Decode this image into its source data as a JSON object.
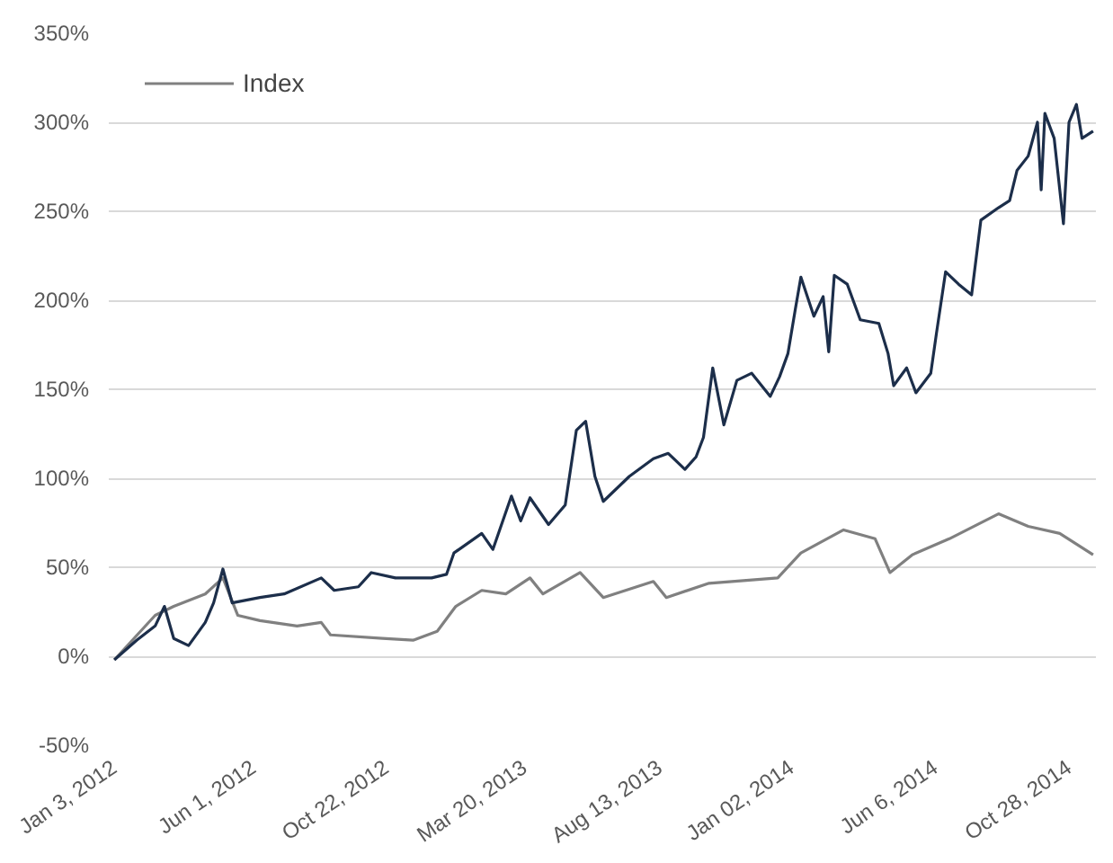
{
  "chart_data": {
    "type": "line",
    "xlim": [
      "2011-12-28",
      "2014-11-26"
    ],
    "ylim": [
      -50,
      350
    ],
    "xticks": [
      {
        "value": "2012-01-03",
        "label": "Jan 3, 2012"
      },
      {
        "value": "2012-06-01",
        "label": "Jun 1, 2012"
      },
      {
        "value": "2012-10-22",
        "label": "Oct 22, 2012"
      },
      {
        "value": "2013-03-20",
        "label": "Mar 20, 2013"
      },
      {
        "value": "2013-08-13",
        "label": "Aug 13, 2013"
      },
      {
        "value": "2014-01-02",
        "label": "Jan 02, 2014"
      },
      {
        "value": "2014-06-06",
        "label": "Jun 6, 2014"
      },
      {
        "value": "2014-10-28",
        "label": "Oct 28, 2014"
      }
    ],
    "yticks": [
      {
        "value": -50,
        "label": "-50%"
      },
      {
        "value": 0,
        "label": "0%"
      },
      {
        "value": 50,
        "label": "50%"
      },
      {
        "value": 100,
        "label": "100%"
      },
      {
        "value": 150,
        "label": "150%"
      },
      {
        "value": 200,
        "label": "200%"
      },
      {
        "value": 250,
        "label": "250%"
      },
      {
        "value": 300,
        "label": "300%"
      },
      {
        "value": 350,
        "label": "350%"
      }
    ],
    "grid": "y",
    "legend": "top left",
    "marker": "none",
    "line_style": "solid",
    "series": [
      {
        "name": "Index",
        "color": "#808080",
        "x": [
          "2012-01-03",
          "2012-02-16",
          "2012-03-07",
          "2012-04-10",
          "2012-04-29",
          "2012-05-15",
          "2012-06-08",
          "2012-07-18",
          "2012-08-13",
          "2012-08-23",
          "2012-10-18",
          "2012-11-20",
          "2012-12-16",
          "2013-01-05",
          "2013-02-02",
          "2013-02-28",
          "2013-03-26",
          "2013-04-09",
          "2013-05-19",
          "2013-06-13",
          "2013-08-06",
          "2013-08-20",
          "2013-10-05",
          "2013-12-18",
          "2014-01-12",
          "2014-02-27",
          "2014-04-02",
          "2014-04-18",
          "2014-05-12",
          "2014-06-21",
          "2014-08-13",
          "2014-09-14",
          "2014-10-18",
          "2014-11-23"
        ],
        "values": [
          -2,
          23,
          28,
          35,
          44,
          23,
          20,
          17,
          19,
          12,
          10,
          9,
          14,
          28,
          37,
          35,
          44,
          35,
          47,
          33,
          42,
          33,
          41,
          44,
          58,
          71,
          66,
          47,
          57,
          66,
          80,
          73,
          69,
          57
        ]
      },
      {
        "color": "#1c2e4a",
        "x": [
          "2012-01-03",
          "2012-01-27",
          "2012-02-16",
          "2012-02-26",
          "2012-03-07",
          "2012-03-23",
          "2012-04-10",
          "2012-04-19",
          "2012-04-29",
          "2012-05-09",
          "2012-06-08",
          "2012-07-04",
          "2012-08-13",
          "2012-08-27",
          "2012-09-22",
          "2012-10-06",
          "2012-11-01",
          "2012-12-10",
          "2012-12-26",
          "2013-01-03",
          "2013-02-02",
          "2013-02-14",
          "2013-03-06",
          "2013-03-16",
          "2013-03-26",
          "2013-04-15",
          "2013-05-03",
          "2013-05-15",
          "2013-05-25",
          "2013-06-04",
          "2013-06-13",
          "2013-07-11",
          "2013-08-06",
          "2013-08-22",
          "2013-09-09",
          "2013-09-21",
          "2013-09-29",
          "2013-10-09",
          "2013-10-21",
          "2013-11-04",
          "2013-11-20",
          "2013-12-10",
          "2013-12-20",
          "2013-12-29",
          "2014-01-06",
          "2014-01-12",
          "2014-01-26",
          "2014-02-05",
          "2014-02-11",
          "2014-02-17",
          "2014-03-03",
          "2014-03-17",
          "2014-04-06",
          "2014-04-16",
          "2014-04-22",
          "2014-05-06",
          "2014-05-16",
          "2014-06-01",
          "2014-06-07",
          "2014-06-17",
          "2014-07-01",
          "2014-07-15",
          "2014-07-25",
          "2014-08-13",
          "2014-08-25",
          "2014-09-02",
          "2014-09-14",
          "2014-09-24",
          "2014-09-28",
          "2014-10-02",
          "2014-10-12",
          "2014-10-22",
          "2014-10-28",
          "2014-11-05",
          "2014-11-11",
          "2014-11-23"
        ],
        "values": [
          -2,
          9,
          17,
          28,
          10,
          6,
          19,
          30,
          49,
          30,
          33,
          35,
          44,
          37,
          39,
          47,
          44,
          44,
          46,
          58,
          69,
          60,
          90,
          76,
          89,
          74,
          85,
          127,
          132,
          101,
          87,
          101,
          111,
          114,
          105,
          112,
          123,
          162,
          130,
          155,
          159,
          146,
          157,
          170,
          195,
          213,
          191,
          202,
          171,
          214,
          209,
          189,
          187,
          170,
          152,
          162,
          148,
          159,
          181,
          216,
          209,
          203,
          245,
          252,
          256,
          273,
          281,
          300,
          262,
          305,
          291,
          243,
          300,
          310,
          291,
          295
        ]
      }
    ]
  }
}
